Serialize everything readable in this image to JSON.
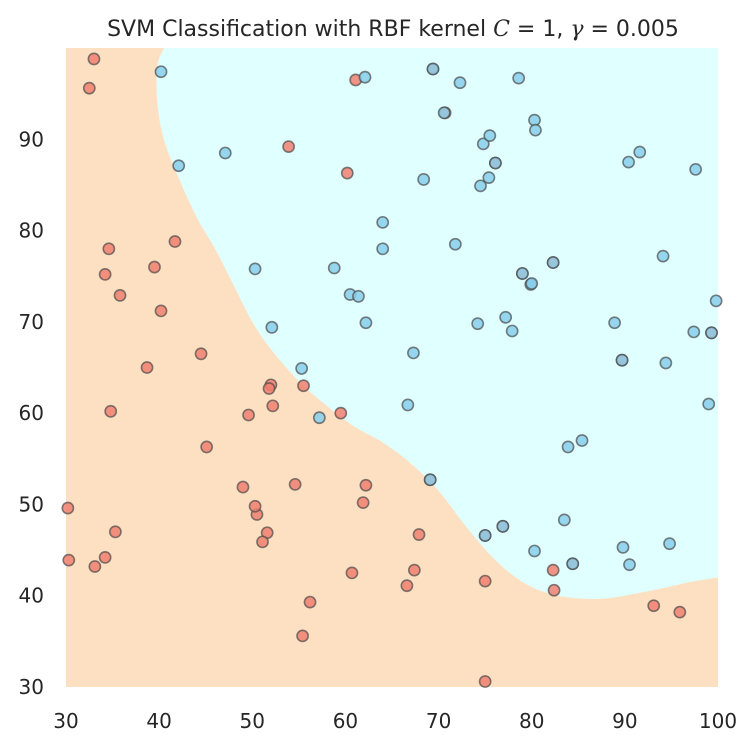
{
  "chart_data": {
    "type": "scatter",
    "title": {
      "prefix": "SVM Classification with RBF kernel ",
      "c_symbol": "C",
      "c_eq": " = 1, ",
      "gamma_symbol": "γ",
      "gamma_eq": " = 0.005"
    },
    "xlabel": "",
    "ylabel": "",
    "xlim": [
      30,
      100
    ],
    "ylim": [
      30,
      100
    ],
    "xticks": [
      30,
      40,
      50,
      60,
      70,
      80,
      90,
      100
    ],
    "yticks": [
      30,
      40,
      50,
      60,
      70,
      80,
      90
    ],
    "grid": false,
    "legend": "none",
    "colors": {
      "region_class_0": "#fde0c2",
      "region_class_1": "#e0ffff",
      "point_class_0": "#f08070",
      "point_class_1": "#87ceeb",
      "point_edge": "#4a4a4a"
    },
    "decision_boundary": [
      [
        40.5,
        100
      ],
      [
        39.8,
        98
      ],
      [
        39.8,
        94
      ],
      [
        40.5,
        90
      ],
      [
        42,
        86
      ],
      [
        44,
        81.5
      ],
      [
        46,
        78
      ],
      [
        48,
        74
      ],
      [
        50,
        70
      ],
      [
        52,
        67
      ],
      [
        55,
        63.5
      ],
      [
        58,
        60.8
      ],
      [
        61,
        58.5
      ],
      [
        64,
        56.8
      ],
      [
        67,
        54.5
      ],
      [
        70,
        51.5
      ],
      [
        73,
        47.5
      ],
      [
        76,
        44
      ],
      [
        79,
        41.5
      ],
      [
        82,
        40.2
      ],
      [
        85,
        39.7
      ],
      [
        88,
        39.7
      ],
      [
        91,
        40.2
      ],
      [
        94,
        40.8
      ],
      [
        97,
        41.5
      ],
      [
        100,
        42
      ]
    ],
    "series": [
      {
        "class": 0,
        "points": [
          [
            34.6,
            78.0
          ],
          [
            30.3,
            43.9
          ],
          [
            35.8,
            72.9
          ],
          [
            60.2,
            86.3
          ],
          [
            79.0,
            75.3
          ],
          [
            45.1,
            56.3
          ],
          [
            61.1,
            96.5
          ],
          [
            75.0,
            46.6
          ],
          [
            76.1,
            87.4
          ],
          [
            84.4,
            43.5
          ],
          [
            95.9,
            38.2
          ],
          [
            75.0,
            30.6
          ],
          [
            82.3,
            76.5
          ],
          [
            69.4,
            97.7
          ],
          [
            39.5,
            76.0
          ],
          [
            53.9,
            89.2
          ],
          [
            69.1,
            52.7
          ],
          [
            67.9,
            46.7
          ],
          [
            70.7,
            92.9
          ],
          [
            76.9,
            47.6
          ],
          [
            67.4,
            42.8
          ],
          [
            89.7,
            65.8
          ],
          [
            50.5,
            48.9
          ],
          [
            50.3,
            49.8
          ],
          [
            99.3,
            68.8
          ],
          [
            32.5,
            95.6
          ],
          [
            34.2,
            44.2
          ],
          [
            33.1,
            43.2
          ],
          [
            55.4,
            35.6
          ],
          [
            51.6,
            46.9
          ],
          [
            52.0,
            63.1
          ],
          [
            59.5,
            60.0
          ],
          [
            55.5,
            63.0
          ],
          [
            51.8,
            62.7
          ],
          [
            52.2,
            60.8
          ],
          [
            49.6,
            59.8
          ],
          [
            60.7,
            42.5
          ],
          [
            54.6,
            52.2
          ],
          [
            41.7,
            78.8
          ],
          [
            62.2,
            52.1
          ],
          [
            61.9,
            50.2
          ],
          [
            49.0,
            51.9
          ],
          [
            44.5,
            66.5
          ],
          [
            38.7,
            65.0
          ],
          [
            34.8,
            60.2
          ],
          [
            35.3,
            47.0
          ],
          [
            33.0,
            98.8
          ],
          [
            30.2,
            49.6
          ],
          [
            40.2,
            71.2
          ],
          [
            34.2,
            75.2
          ],
          [
            56.2,
            39.3
          ],
          [
            51.1,
            45.9
          ],
          [
            66.6,
            41.1
          ],
          [
            75.0,
            41.6
          ],
          [
            93.1,
            38.9
          ],
          [
            82.3,
            42.8
          ],
          [
            82.4,
            40.6
          ]
        ]
      },
      {
        "class": 1,
        "points": [
          [
            40.2,
            97.4
          ],
          [
            42.1,
            87.1
          ],
          [
            47.1,
            88.5
          ],
          [
            50.3,
            75.8
          ],
          [
            52.1,
            69.4
          ],
          [
            55.3,
            64.9
          ],
          [
            57.2,
            59.5
          ],
          [
            58.8,
            75.9
          ],
          [
            60.5,
            73.0
          ],
          [
            61.4,
            72.8
          ],
          [
            62.1,
            96.8
          ],
          [
            62.2,
            69.9
          ],
          [
            64.0,
            80.9
          ],
          [
            64.0,
            78.0
          ],
          [
            66.7,
            60.9
          ],
          [
            67.3,
            66.6
          ],
          [
            68.4,
            85.6
          ],
          [
            70.6,
            92.9
          ],
          [
            71.8,
            78.5
          ],
          [
            72.3,
            96.2
          ],
          [
            74.2,
            69.8
          ],
          [
            74.5,
            84.9
          ],
          [
            74.8,
            89.5
          ],
          [
            75.4,
            85.8
          ],
          [
            75.5,
            90.4
          ],
          [
            76.1,
            87.4
          ],
          [
            76.9,
            47.6
          ],
          [
            77.2,
            70.5
          ],
          [
            77.9,
            69.0
          ],
          [
            78.6,
            96.7
          ],
          [
            79.0,
            75.3
          ],
          [
            79.9,
            74.1
          ],
          [
            80.3,
            92.1
          ],
          [
            80.4,
            91.0
          ],
          [
            80.3,
            44.9
          ],
          [
            82.3,
            76.5
          ],
          [
            83.5,
            48.3
          ],
          [
            83.9,
            56.3
          ],
          [
            84.4,
            43.5
          ],
          [
            85.4,
            57.0
          ],
          [
            88.9,
            69.9
          ],
          [
            89.7,
            65.8
          ],
          [
            89.8,
            45.3
          ],
          [
            90.4,
            87.5
          ],
          [
            90.5,
            43.4
          ],
          [
            91.6,
            88.6
          ],
          [
            94.1,
            77.2
          ],
          [
            94.4,
            65.5
          ],
          [
            94.8,
            45.7
          ],
          [
            97.4,
            68.9
          ],
          [
            97.6,
            86.7
          ],
          [
            99.0,
            61.0
          ],
          [
            99.3,
            68.8
          ],
          [
            99.8,
            72.3
          ],
          [
            69.1,
            52.7
          ],
          [
            75.0,
            46.6
          ],
          [
            69.4,
            97.7
          ],
          [
            80.0,
            74.2
          ]
        ]
      }
    ]
  }
}
